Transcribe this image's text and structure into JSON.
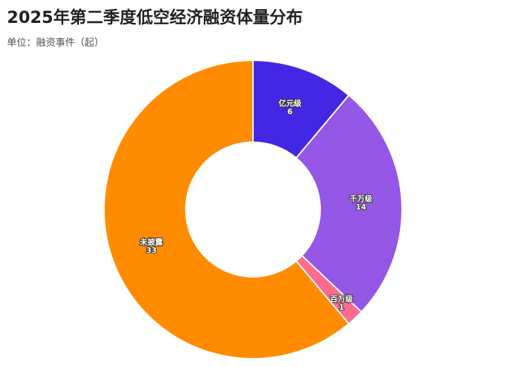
{
  "chart_data": {
    "type": "donut",
    "title": "2025年第二季度低空经济融资体量分布",
    "subtitle": "单位：融资事件（起）",
    "categories": [
      "亿元级",
      "千万级",
      "百万级",
      "未披露"
    ],
    "values": [
      6,
      14,
      1,
      33
    ],
    "colors": [
      "#4427e4",
      "#9457e6",
      "#ff6b8f",
      "#ff8c00"
    ]
  }
}
